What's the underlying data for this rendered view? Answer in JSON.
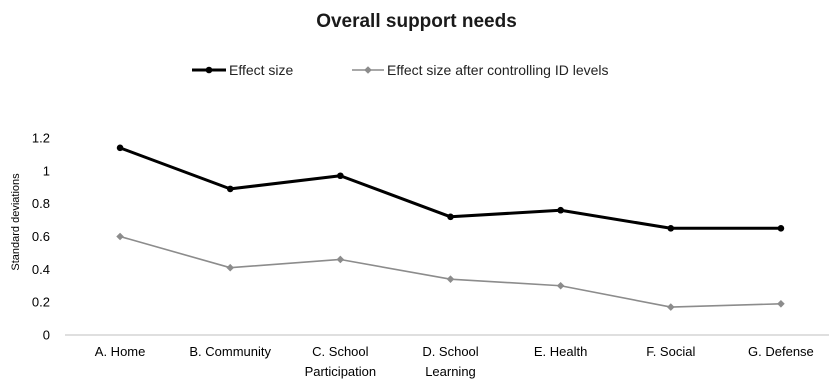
{
  "chart_data": {
    "type": "line",
    "title": "Overall support needs",
    "xlabel": "",
    "ylabel": "Standard deviations",
    "ylim": [
      0,
      1.2
    ],
    "yticks": [
      "0",
      "0.2",
      "0.4",
      "0.6",
      "0.8",
      "1",
      "1.2"
    ],
    "categories": [
      [
        "A. Home"
      ],
      [
        "B. Community"
      ],
      [
        "C. School",
        "Participation"
      ],
      [
        "D. School",
        "Learning"
      ],
      [
        "E. Health"
      ],
      [
        "F. Social"
      ],
      [
        "G. Defense"
      ]
    ],
    "series": [
      {
        "name": "Effect size",
        "color": "#000000",
        "marker": "circle",
        "values": [
          1.14,
          0.89,
          0.97,
          0.72,
          0.76,
          0.65,
          0.65
        ]
      },
      {
        "name": "Effect size after controlling ID levels",
        "color": "#8c8c8c",
        "marker": "diamond",
        "values": [
          0.6,
          0.41,
          0.46,
          0.34,
          0.3,
          0.17,
          0.19
        ]
      }
    ],
    "grid": false,
    "legend": "top"
  }
}
